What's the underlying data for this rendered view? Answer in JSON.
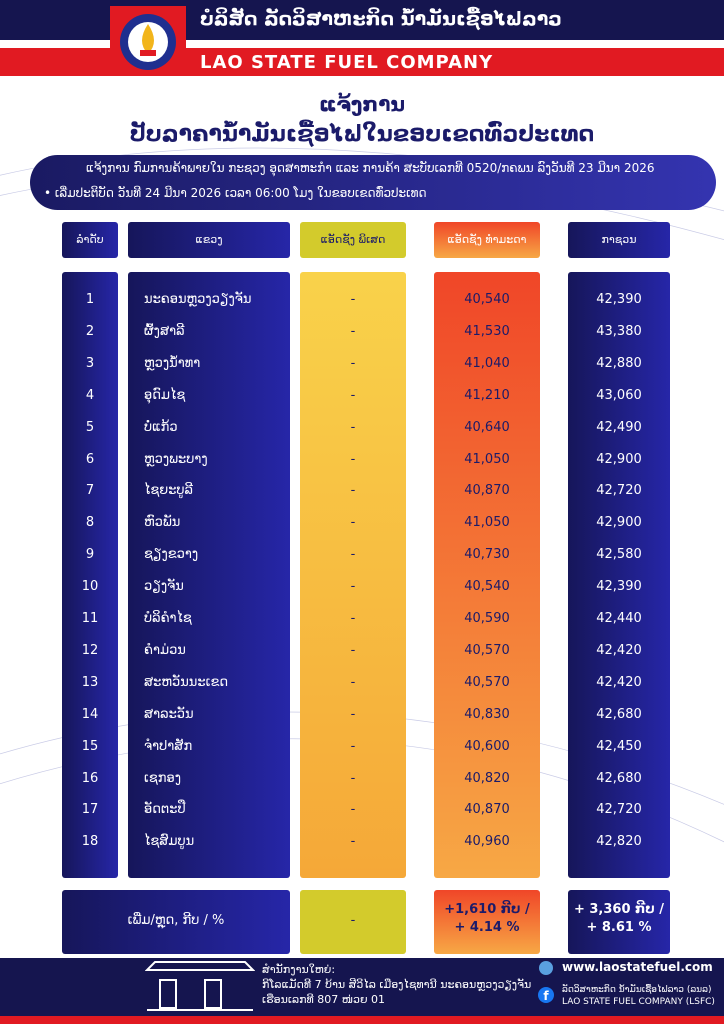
{
  "header": {
    "title_lao": "ບໍລິສັດ ລັດວິສາຫະກິດ ນ້ຳມັນເຊື້ອໄຟລາວ",
    "title_en": "LAO STATE FUEL COMPANY"
  },
  "notice": {
    "heading": "ແຈ້ງການ",
    "title": "ປັບລາຄານ້ຳມັນເຊື້ອໄຟໃນຂອບເຂດທົ່ວປະເທດ",
    "reference": "ແຈ້ງການ ກົມການຄ້າພາຍໃນ ກະຊວງ ອຸດສາຫະກຳ ແລະ ການຄ້າ ສະບັບເລກທີ 0520/ກຄພນ ລົງວັນທີ 23 ມີນາ 2026",
    "effective": "ເລີ່ມປະຕິບັດ ວັນທີ 24 ມີນາ 2026 ເວລາ 06:00 ໂມງ ໃນຂອບເຂດທົ່ວປະເທດ"
  },
  "table": {
    "columns": [
      "ລຳດັບ",
      "ແຂວງ",
      "ແອັດຊັງ ພິເສດ",
      "ແອັດຊັງ ທຳມະດາ",
      "ກາຊວນ"
    ],
    "rows": [
      [
        "1",
        "ນະຄອນຫຼວງວຽງຈັນ",
        "-",
        "40,540",
        "42,390"
      ],
      [
        "2",
        "ຜົ້ງສາລີ",
        "-",
        "41,530",
        "43,380"
      ],
      [
        "3",
        "ຫຼວງນ້ຳທາ",
        "-",
        "41,040",
        "42,880"
      ],
      [
        "4",
        "ອຸດົມໄຊ",
        "-",
        "41,210",
        "43,060"
      ],
      [
        "5",
        "ບໍ່ແກ້ວ",
        "-",
        "40,640",
        "42,490"
      ],
      [
        "6",
        "ຫຼວງພະບາງ",
        "-",
        "41,050",
        "42,900"
      ],
      [
        "7",
        "ໄຊຍະບູລີ",
        "-",
        "40,870",
        "42,720"
      ],
      [
        "8",
        "ຫົວພັນ",
        "-",
        "41,050",
        "42,900"
      ],
      [
        "9",
        "ຊຽງຂວາງ",
        "-",
        "40,730",
        "42,580"
      ],
      [
        "10",
        "ວຽງຈັນ",
        "-",
        "40,540",
        "42,390"
      ],
      [
        "11",
        "ບໍລິຄຳໄຊ",
        "-",
        "40,590",
        "42,440"
      ],
      [
        "12",
        "ຄຳມ່ວນ",
        "-",
        "40,570",
        "42,420"
      ],
      [
        "13",
        "ສະຫວັນນະເຂດ",
        "-",
        "40,570",
        "42,420"
      ],
      [
        "14",
        "ສາລະວັນ",
        "-",
        "40,830",
        "42,680"
      ],
      [
        "15",
        "ຈຳປາສັກ",
        "-",
        "40,600",
        "42,450"
      ],
      [
        "16",
        "ເຊກອງ",
        "-",
        "40,820",
        "42,680"
      ],
      [
        "17",
        "ອັດຕະປື",
        "-",
        "40,870",
        "42,720"
      ],
      [
        "18",
        "ໄຊສົມບູນ",
        "-",
        "40,960",
        "42,820"
      ]
    ],
    "change": {
      "label": "ເພີ່ມ/ຫຼຸດ, ກີບ / %",
      "special": "-",
      "regular": [
        "+1,610 ກີບ /",
        "+ 4.14 %"
      ],
      "diesel": [
        "+ 3,360 ກີບ /",
        "+ 8.61 %"
      ]
    }
  },
  "footer": {
    "office_label": "ສຳນັກງານໃຫຍ່:",
    "address_1": "ກິໂລແມັດທີ 7 ບ້ານ ສີວິໄລ ເມືອງໄຊທານີ ນະຄອນຫຼວງວຽງຈັນ",
    "address_2": "ເຮືອນເລກທີ 807 ໜ່ວຍ 01",
    "website": "www.laostatefuel.com",
    "facebook_lao": "ລັດວິສາຫະກິດ ນ້ຳມັນເຊື້ອໄຟລາວ (ລນລ)",
    "facebook_en": "LAO STATE FUEL COMPANY (LSFC)"
  }
}
